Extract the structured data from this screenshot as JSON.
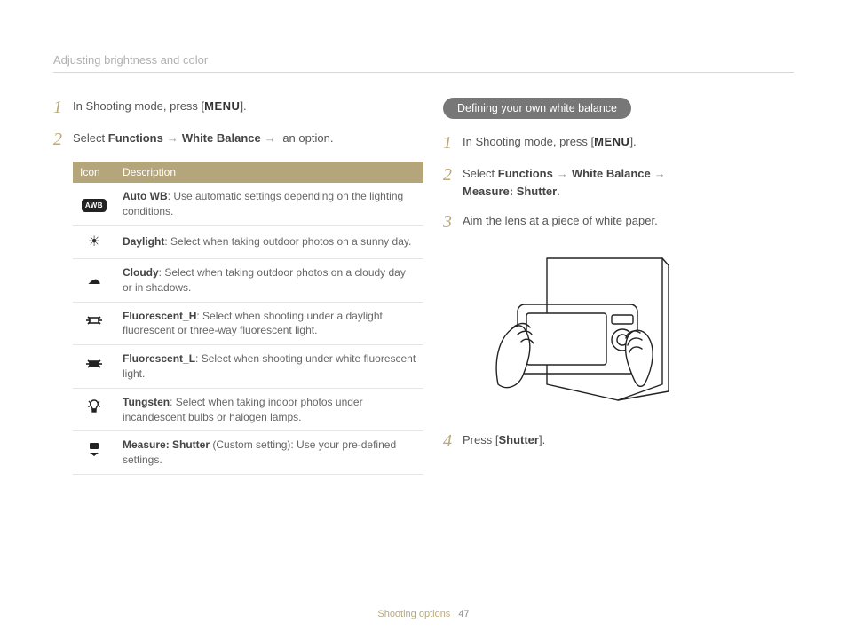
{
  "header": "Adjusting brightness and color",
  "left": {
    "step1_prefix": "In Shooting mode, press [",
    "step1_menu": "MENU",
    "step1_suffix": "].",
    "step2_prefix": "Select ",
    "step2_a": "Functions",
    "step2_b": "White Balance",
    "step2_c": " an option.",
    "table": {
      "h1": "Icon",
      "h2": "Description",
      "rows": [
        {
          "icon": "awb",
          "name": "Auto WB",
          "desc": ": Use automatic settings depending on the lighting conditions."
        },
        {
          "icon": "sun",
          "name": "Daylight",
          "desc": ": Select when taking outdoor photos on a sunny day."
        },
        {
          "icon": "cloud",
          "name": "Cloudy",
          "desc": ": Select when taking outdoor photos on a cloudy day or in shadows."
        },
        {
          "icon": "flh",
          "name": "Fluorescent_H",
          "desc": ": Select when shooting under a daylight fluorescent or three-way fluorescent light."
        },
        {
          "icon": "fll",
          "name": "Fluorescent_L",
          "desc": ": Select when shooting under white fluorescent light."
        },
        {
          "icon": "tungsten",
          "name": "Tungsten",
          "desc": ": Select when taking indoor photos under incandescent bulbs or halogen lamps."
        },
        {
          "icon": "measure",
          "name": "Measure: Shutter",
          "desc": " (Custom setting): Use your pre-defined settings."
        }
      ]
    }
  },
  "right": {
    "pill": "Defining your own white balance",
    "step1_prefix": "In Shooting mode, press [",
    "step1_menu": "MENU",
    "step1_suffix": "].",
    "step2_prefix": "Select ",
    "step2_a": "Functions",
    "step2_b": "White Balance",
    "step2_c": "Measure: Shutter",
    "step2_suffix": ".",
    "step3": "Aim the lens at a piece of white paper.",
    "step4_prefix": "Press [",
    "step4_bold": "Shutter",
    "step4_suffix": "]."
  },
  "footer": {
    "section": "Shooting options",
    "page": "47"
  }
}
